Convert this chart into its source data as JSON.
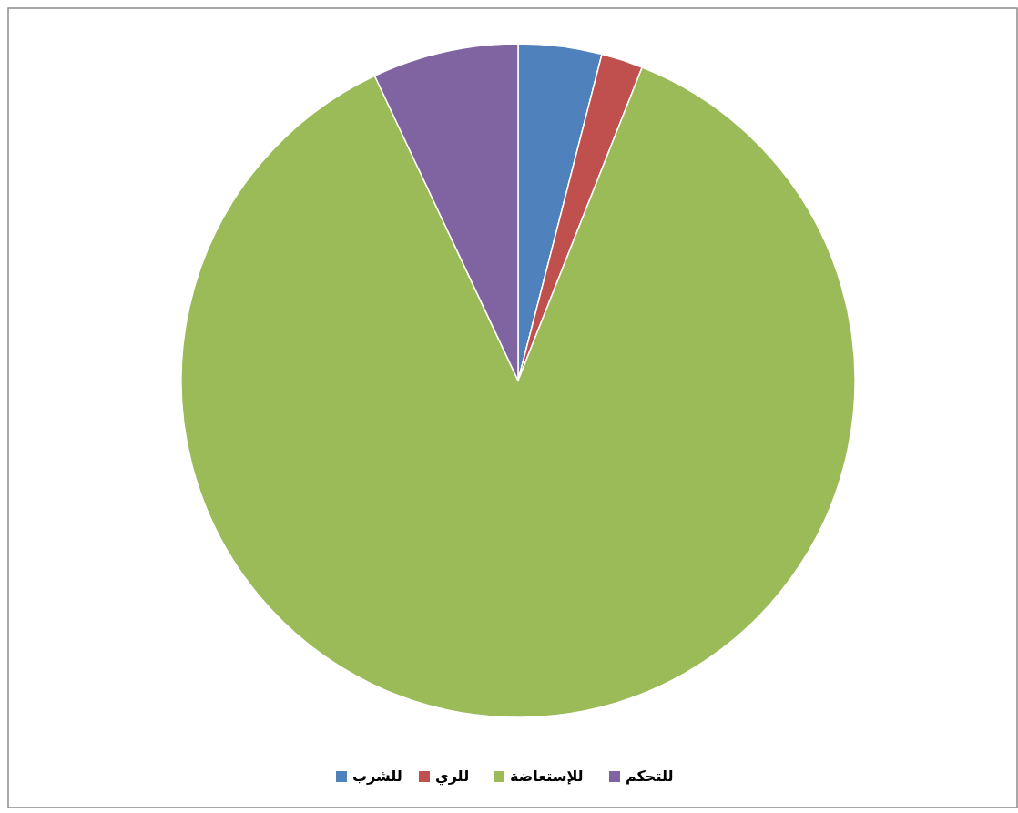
{
  "chart_data": {
    "type": "pie",
    "categories": [
      "للشرب",
      "للري",
      "للإستعاضة",
      "للتحكم"
    ],
    "values": [
      4,
      2,
      87,
      7
    ],
    "colors": [
      "#4f81bd",
      "#c0504d",
      "#9bbb59",
      "#8064a2"
    ],
    "legend": "bottom"
  }
}
